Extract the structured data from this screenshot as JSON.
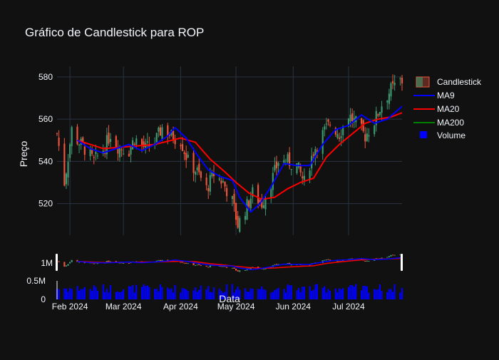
{
  "chart_data": {
    "type": "candlestick",
    "title": "Gráfico de Candlestick para ROP",
    "ylabel": "Preço",
    "xlabel": "Data",
    "ylim": [
      505,
      585
    ],
    "yticks": [
      520,
      540,
      560,
      580
    ],
    "xticks": [
      "Feb 2024",
      "Mar 2024",
      "Apr 2024",
      "May 2024",
      "Jun 2024",
      "Jul 2024"
    ],
    "xtick_dates": [
      "2024-02-01",
      "2024-03-01",
      "2024-04-01",
      "2024-05-01",
      "2024-06-01",
      "2024-07-01"
    ],
    "xrange_dates": [
      "2024-01-25",
      "2024-07-30"
    ],
    "overview_yticks": [
      "1M"
    ],
    "volume_yticks": [
      "0.5M",
      "0"
    ],
    "volume_ylim": [
      0,
      700000
    ],
    "legend": [
      {
        "name": "Candlestick",
        "color": "#ef553b"
      },
      {
        "name": "MA9",
        "color": "#0000ff"
      },
      {
        "name": "MA20",
        "color": "#ff0000"
      },
      {
        "name": "MA200",
        "color": "#008000"
      },
      {
        "name": "Volume",
        "color": "#0000ff"
      }
    ],
    "colors": {
      "increasing": "#3d9970",
      "decreasing": "#ef553b",
      "background": "#111111",
      "grid": "#283442"
    },
    "anchors": [
      [
        "2024-01-25",
        553
      ],
      [
        "2024-01-29",
        530
      ],
      [
        "2024-01-31",
        542
      ],
      [
        "2024-02-02",
        555
      ],
      [
        "2024-02-05",
        550
      ],
      [
        "2024-02-09",
        546
      ],
      [
        "2024-02-14",
        540
      ],
      [
        "2024-02-20",
        547
      ],
      [
        "2024-02-23",
        553
      ],
      [
        "2024-02-27",
        547
      ],
      [
        "2024-03-04",
        545
      ],
      [
        "2024-03-07",
        551
      ],
      [
        "2024-03-13",
        546
      ],
      [
        "2024-03-18",
        549
      ],
      [
        "2024-03-22",
        556
      ],
      [
        "2024-03-27",
        552
      ],
      [
        "2024-04-01",
        550
      ],
      [
        "2024-04-05",
        540
      ],
      [
        "2024-04-10",
        535
      ],
      [
        "2024-04-15",
        527
      ],
      [
        "2024-04-19",
        534
      ],
      [
        "2024-04-24",
        530
      ],
      [
        "2024-04-29",
        521
      ],
      [
        "2024-05-02",
        510
      ],
      [
        "2024-05-07",
        519
      ],
      [
        "2024-05-10",
        525
      ],
      [
        "2024-05-15",
        520
      ],
      [
        "2024-05-20",
        530
      ],
      [
        "2024-05-24",
        540
      ],
      [
        "2024-05-29",
        540
      ],
      [
        "2024-06-03",
        538
      ],
      [
        "2024-06-07",
        530
      ],
      [
        "2024-06-12",
        545
      ],
      [
        "2024-06-17",
        553
      ],
      [
        "2024-06-21",
        558
      ],
      [
        "2024-06-26",
        553
      ],
      [
        "2024-07-01",
        562
      ],
      [
        "2024-07-05",
        558
      ],
      [
        "2024-07-10",
        552
      ],
      [
        "2024-07-15",
        559
      ],
      [
        "2024-07-19",
        567
      ],
      [
        "2024-07-24",
        574
      ],
      [
        "2024-07-29",
        578
      ]
    ],
    "ma9": [
      [
        "2024-02-05",
        550
      ],
      [
        "2024-02-12",
        546
      ],
      [
        "2024-02-19",
        544
      ],
      [
        "2024-02-26",
        546
      ],
      [
        "2024-03-04",
        548
      ],
      [
        "2024-03-11",
        545
      ],
      [
        "2024-03-18",
        548
      ],
      [
        "2024-03-25",
        552
      ],
      [
        "2024-03-29",
        556
      ],
      [
        "2024-04-04",
        551
      ],
      [
        "2024-04-10",
        543
      ],
      [
        "2024-04-16",
        536
      ],
      [
        "2024-04-22",
        533
      ],
      [
        "2024-04-29",
        531
      ],
      [
        "2024-05-03",
        523
      ],
      [
        "2024-05-09",
        516
      ],
      [
        "2024-05-14",
        520
      ],
      [
        "2024-05-20",
        528
      ],
      [
        "2024-05-27",
        539
      ],
      [
        "2024-06-03",
        538
      ],
      [
        "2024-06-10",
        538
      ],
      [
        "2024-06-17",
        548
      ],
      [
        "2024-06-24",
        555
      ],
      [
        "2024-07-01",
        557
      ],
      [
        "2024-07-08",
        562
      ],
      [
        "2024-07-15",
        558
      ],
      [
        "2024-07-22",
        560
      ],
      [
        "2024-07-30",
        566
      ]
    ],
    "ma20": [
      [
        "2024-02-05",
        550
      ],
      [
        "2024-02-19",
        546
      ],
      [
        "2024-03-04",
        547
      ],
      [
        "2024-03-18",
        548
      ],
      [
        "2024-04-01",
        551
      ],
      [
        "2024-04-09",
        549
      ],
      [
        "2024-04-17",
        541
      ],
      [
        "2024-04-25",
        535
      ],
      [
        "2024-05-01",
        530
      ],
      [
        "2024-05-08",
        525
      ],
      [
        "2024-05-15",
        522
      ],
      [
        "2024-05-22",
        523
      ],
      [
        "2024-05-29",
        527
      ],
      [
        "2024-06-05",
        530
      ],
      [
        "2024-06-12",
        532
      ],
      [
        "2024-06-19",
        542
      ],
      [
        "2024-06-26",
        548
      ],
      [
        "2024-07-03",
        553
      ],
      [
        "2024-07-10",
        558
      ],
      [
        "2024-07-17",
        560
      ],
      [
        "2024-07-24",
        561
      ],
      [
        "2024-07-30",
        563
      ]
    ]
  }
}
